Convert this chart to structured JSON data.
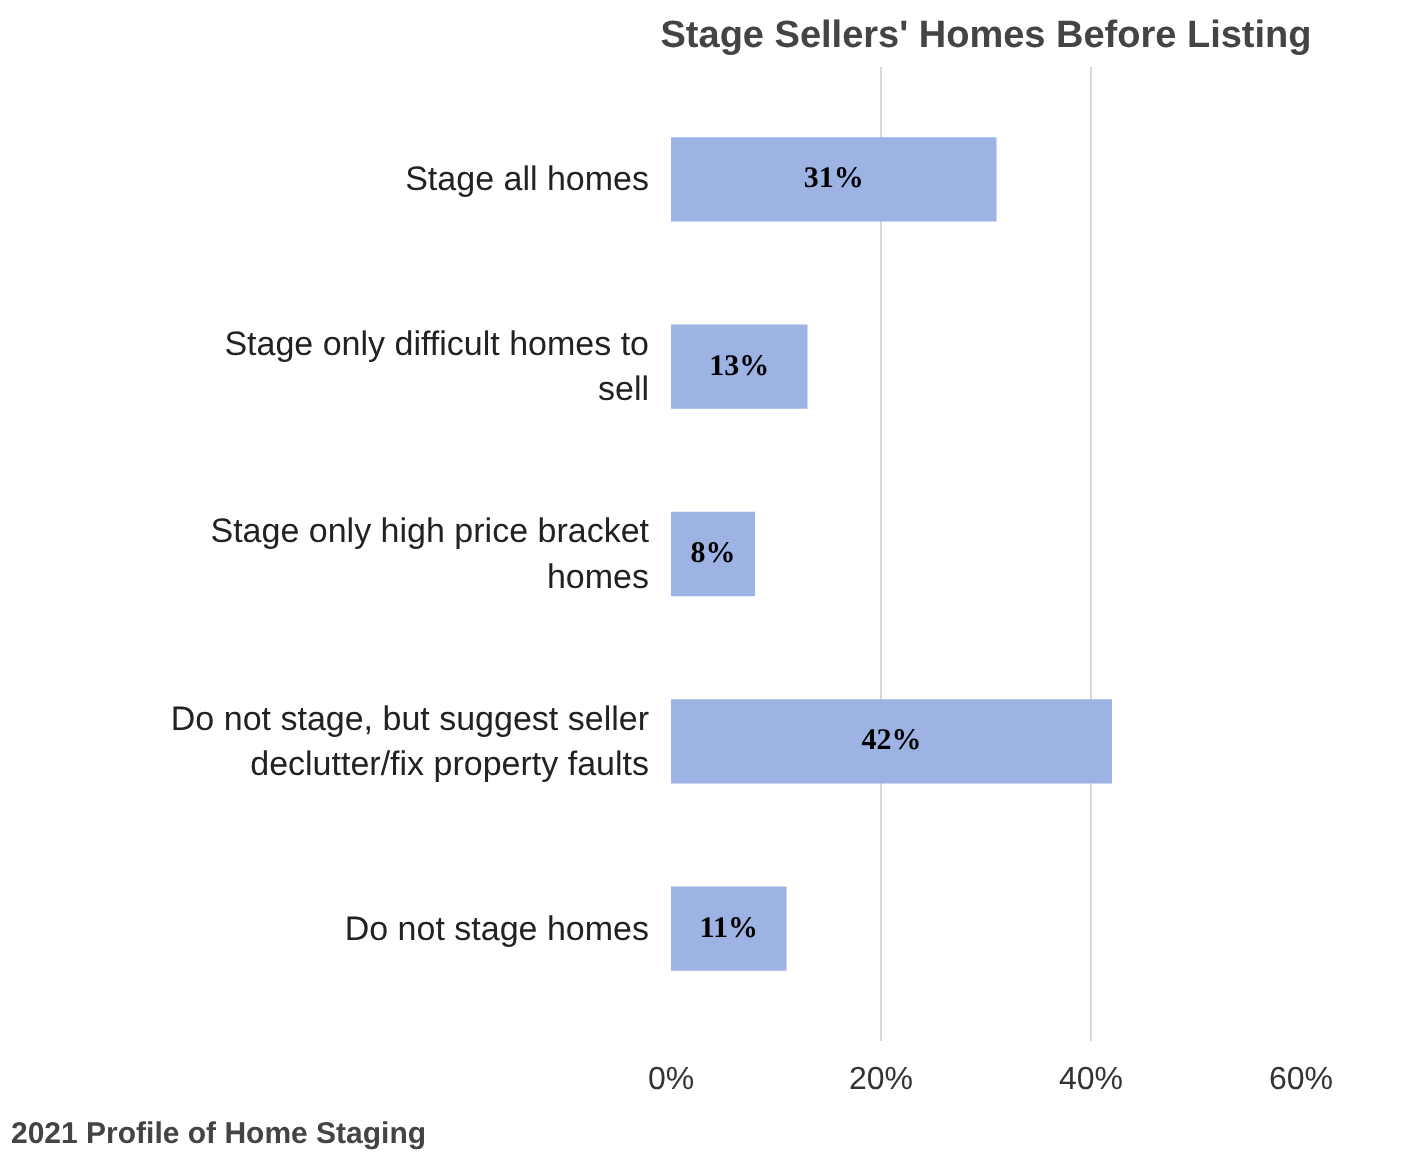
{
  "chart_data": {
    "type": "bar",
    "orientation": "horizontal",
    "title": "Stage Sellers' Homes Before Listing",
    "categories": [
      "Stage all homes",
      "Stage only difficult homes to sell",
      "Stage only high price bracket homes",
      "Do not stage, but suggest seller declutter/fix property faults",
      "Do not stage homes"
    ],
    "values": [
      31,
      13,
      8,
      42,
      11
    ],
    "value_labels": [
      "31%",
      "13%",
      "8%",
      "42%",
      "11%"
    ],
    "color": "#9db3e3",
    "xlim": [
      0,
      60
    ],
    "xticks": [
      {
        "value": 0,
        "label": "0%"
      },
      {
        "value": 20,
        "label": "20%"
      },
      {
        "value": 40,
        "label": "40%"
      },
      {
        "value": 60,
        "label": "60%"
      }
    ],
    "grid": "x",
    "annotations": [
      "2021 Profile of Home Staging"
    ]
  }
}
